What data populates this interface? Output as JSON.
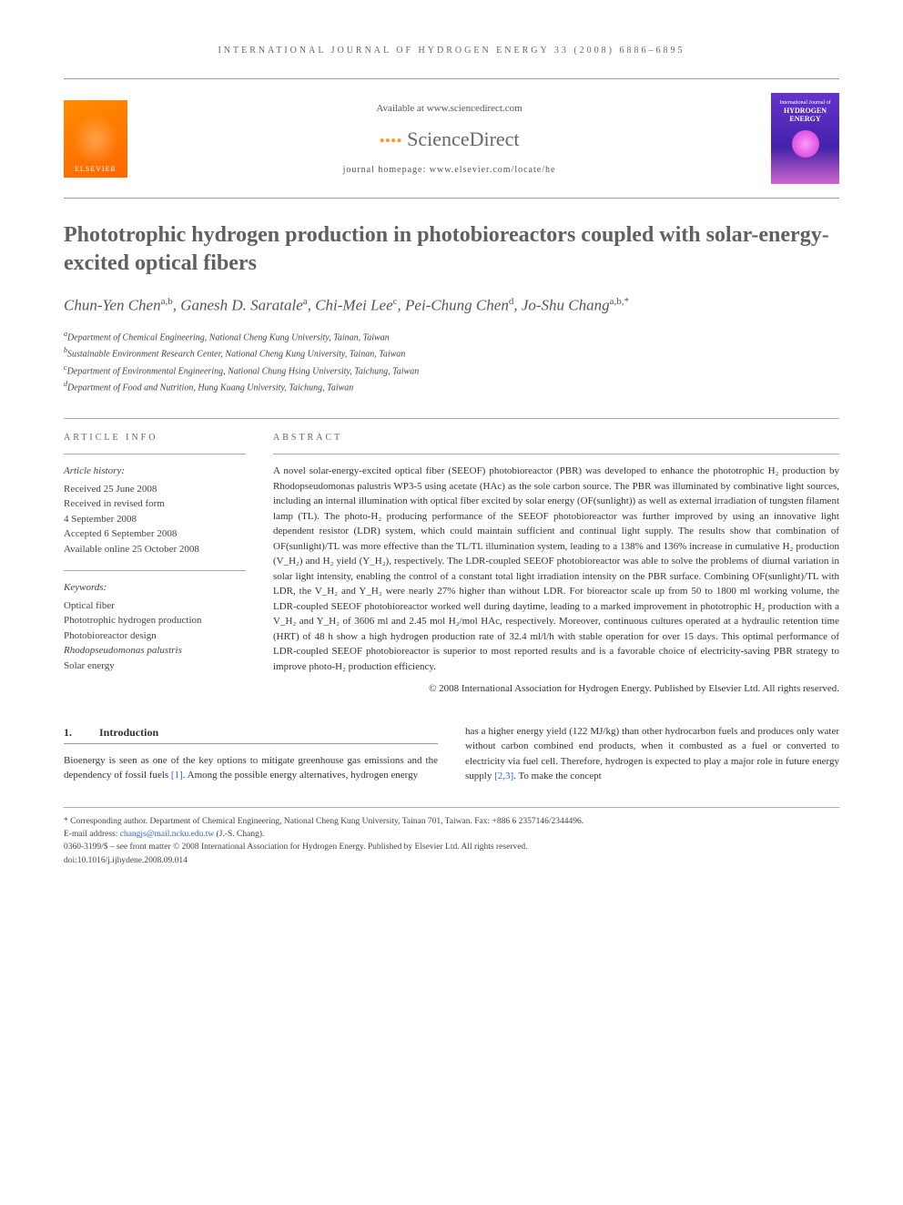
{
  "journal_header": "INTERNATIONAL JOURNAL OF HYDROGEN ENERGY 33 (2008) 6886–6895",
  "header": {
    "available": "Available at www.sciencedirect.com",
    "sciencedirect": "ScienceDirect",
    "homepage": "journal homepage: www.elsevier.com/locate/he",
    "elsevier": "ELSEVIER",
    "cover_line1": "International Journal of",
    "cover_line2": "HYDROGEN",
    "cover_line3": "ENERGY"
  },
  "title": "Phototrophic hydrogen production in photobioreactors coupled with solar-energy-excited optical fibers",
  "authors_html": "Chun-Yen Chen<sup>a,b</sup>, Ganesh D. Saratale<sup>a</sup>, Chi-Mei Lee<sup>c</sup>, Pei-Chung Chen<sup>d</sup>, Jo-Shu Chang<sup>a,b,*</sup>",
  "affiliations": [
    {
      "sup": "a",
      "text": "Department of Chemical Engineering, National Cheng Kung University, Tainan, Taiwan"
    },
    {
      "sup": "b",
      "text": "Sustainable Environment Research Center, National Cheng Kung University, Tainan, Taiwan"
    },
    {
      "sup": "c",
      "text": "Department of Environmental Engineering, National Chung Hsing University, Taichung, Taiwan"
    },
    {
      "sup": "d",
      "text": "Department of Food and Nutrition, Hung Kuang University, Taichung, Taiwan"
    }
  ],
  "info": {
    "heading": "ARTICLE INFO",
    "history_label": "Article history:",
    "history": [
      "Received 25 June 2008",
      "Received in revised form",
      "4 September 2008",
      "Accepted 6 September 2008",
      "Available online 25 October 2008"
    ],
    "keywords_label": "Keywords:",
    "keywords": [
      {
        "text": "Optical fiber",
        "italic": false
      },
      {
        "text": "Phototrophic hydrogen production",
        "italic": false
      },
      {
        "text": "Photobioreactor design",
        "italic": false
      },
      {
        "text": "Rhodopseudomonas palustris",
        "italic": true
      },
      {
        "text": "Solar energy",
        "italic": false
      }
    ]
  },
  "abstract": {
    "heading": "ABSTRACT",
    "text": "A novel solar-energy-excited optical fiber (SEEOF) photobioreactor (PBR) was developed to enhance the phototrophic H₂ production by Rhodopseudomonas palustris WP3-5 using acetate (HAc) as the sole carbon source. The PBR was illuminated by combinative light sources, including an internal illumination with optical fiber excited by solar energy (OF(sunlight)) as well as external irradiation of tungsten filament lamp (TL). The photo-H₂ producing performance of the SEEOF photobioreactor was further improved by using an innovative light dependent resistor (LDR) system, which could maintain sufficient and continual light supply. The results show that combination of OF(sunlight)/TL was more effective than the TL/TL illumination system, leading to a 138% and 136% increase in cumulative H₂ production (V_H₂) and H₂ yield (Y_H₂), respectively. The LDR-coupled SEEOF photobioreactor was able to solve the problems of diurnal variation in solar light intensity, enabling the control of a constant total light irradiation intensity on the PBR surface. Combining OF(sunlight)/TL with LDR, the V_H₂ and Y_H₂ were nearly 27% higher than without LDR. For bioreactor scale up from 50 to 1800 ml working volume, the LDR-coupled SEEOF photobioreactor worked well during daytime, leading to a marked improvement in phototrophic H₂ production with a V_H₂ and Y_H₂ of 3606 ml and 2.45 mol H₂/mol HAc, respectively. Moreover, continuous cultures operated at a hydraulic retention time (HRT) of 48 h show a high hydrogen production rate of 32.4 ml/l/h with stable operation for over 15 days. This optimal performance of LDR-coupled SEEOF photobioreactor is superior to most reported results and is a favorable choice of electricity-saving PBR strategy to improve photo-H₂ production efficiency.",
    "copyright": "© 2008 International Association for Hydrogen Energy. Published by Elsevier Ltd. All rights reserved."
  },
  "body": {
    "section_num": "1.",
    "section_title": "Introduction",
    "col1": "Bioenergy is seen as one of the key options to mitigate greenhouse gas emissions and the dependency of fossil fuels [1]. Among the possible energy alternatives, hydrogen energy",
    "col2": "has a higher energy yield (122 MJ/kg) than other hydrocarbon fuels and produces only water without carbon combined end products, when it combusted as a fuel or converted to electricity via fuel cell. Therefore, hydrogen is expected to play a major role in future energy supply [2,3]. To make the concept",
    "ref1": "[1]",
    "ref23": "[2,3]"
  },
  "footer": {
    "corresponding": "* Corresponding author. Department of Chemical Engineering, National Cheng Kung University, Tainan 701, Taiwan. Fax: +886 6 2357146/2344496.",
    "email_label": "E-mail address: ",
    "email": "changjs@mail.ncku.edu.tw",
    "email_suffix": " (J.-S. Chang).",
    "issn": "0360-3199/$ – see front matter © 2008 International Association for Hydrogen Energy. Published by Elsevier Ltd. All rights reserved.",
    "doi": "doi:10.1016/j.ijhydene.2008.09.014"
  },
  "colors": {
    "elsevier_orange": "#ff6600",
    "link_blue": "#3366cc",
    "cover_purple": "#6633cc",
    "title_gray": "#606060"
  }
}
